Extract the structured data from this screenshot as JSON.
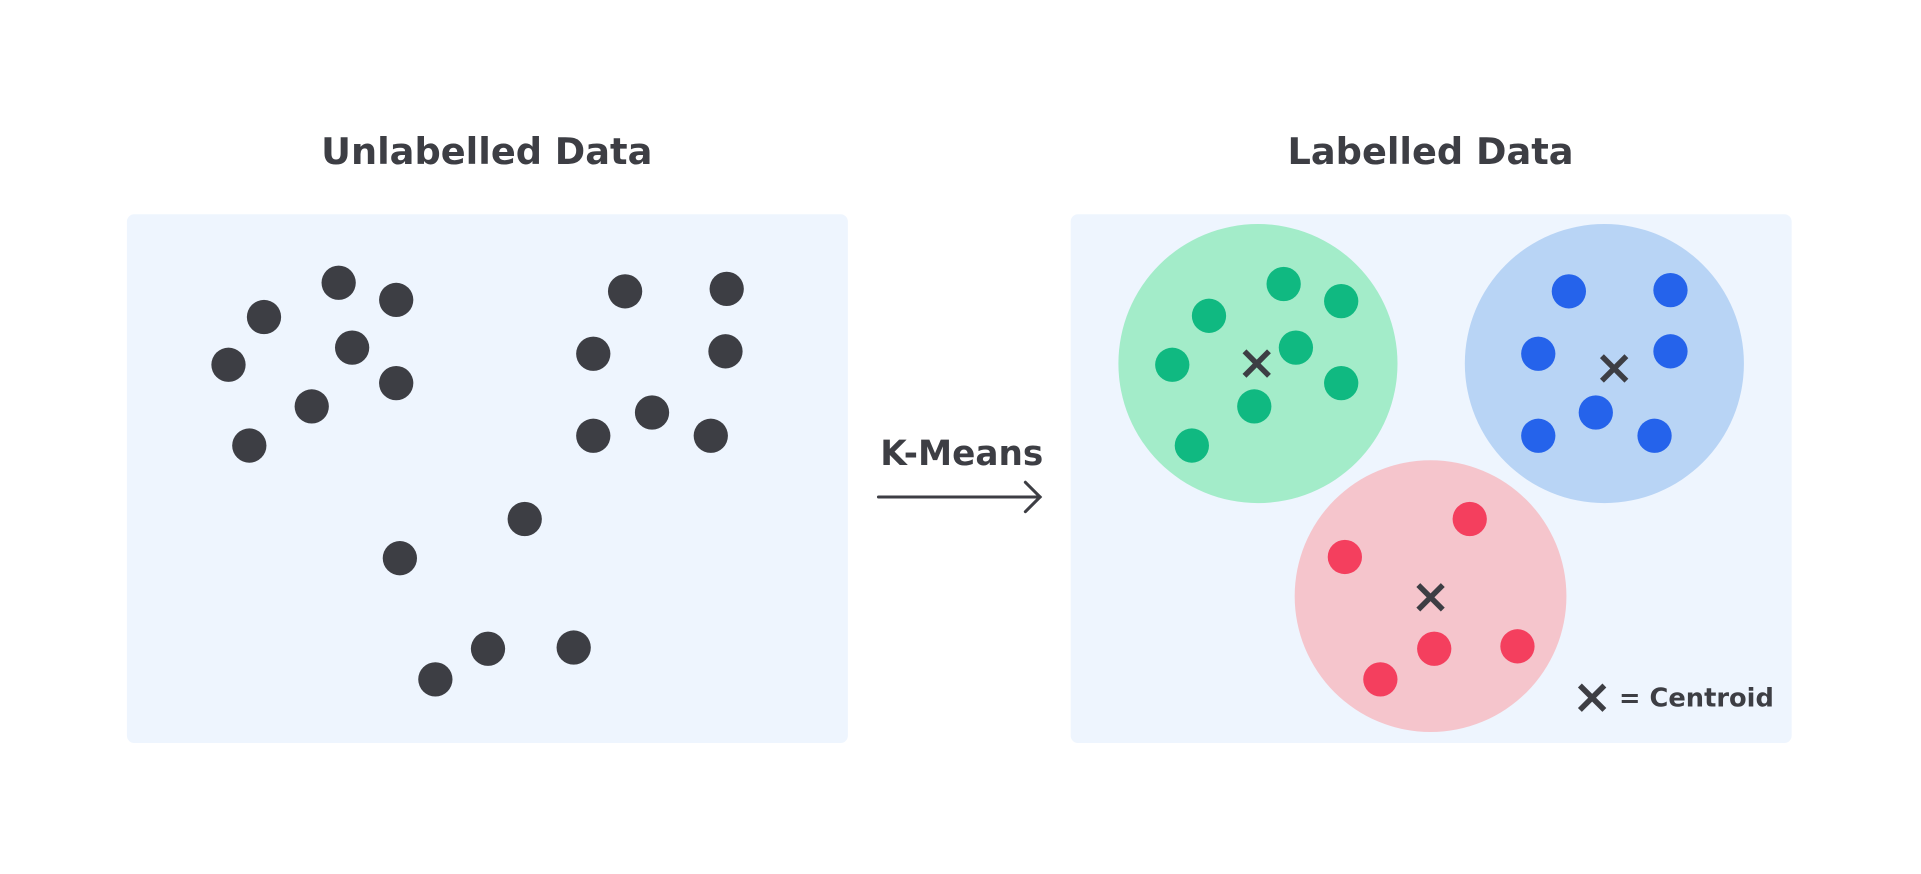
{
  "left": {
    "title": "Unlabelled Data"
  },
  "right": {
    "title": "Labelled Data"
  },
  "arrow": {
    "label": "K-Means"
  },
  "legend": {
    "label": "= Centroid",
    "icon": "x-icon"
  },
  "colors": {
    "text": "#3d3e44",
    "panel": "#eef5fe",
    "unlabelled_point": "#3d3e44",
    "cluster_green_fill": "#a3ecc9",
    "cluster_green_point": "#10b981",
    "cluster_blue_fill": "#b8d4f5",
    "cluster_blue_point": "#2563eb",
    "cluster_red_fill": "#f5c5cc",
    "cluster_red_point": "#f43f5e",
    "centroid": "#3d3e44"
  }
}
